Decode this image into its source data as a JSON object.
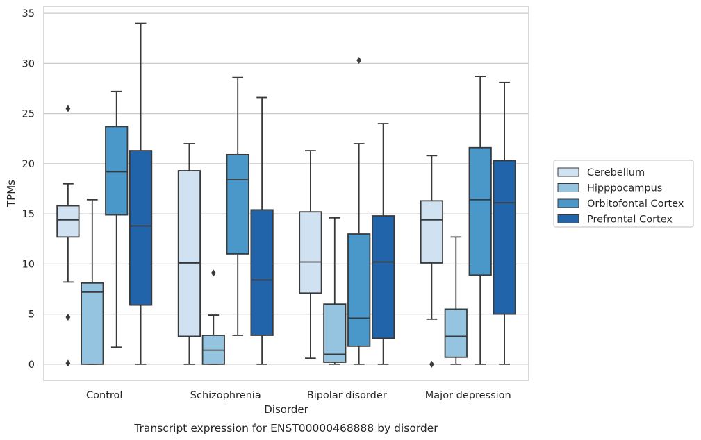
{
  "chart_data": {
    "type": "box",
    "caption": "Transcript expression for ENST00000468888 by disorder",
    "xlabel": "Disorder",
    "ylabel": "TPMs",
    "ylim": [
      -1.6,
      35.7
    ],
    "yticks": [
      0,
      5,
      10,
      15,
      20,
      25,
      30,
      35
    ],
    "grid": true,
    "legend_position": "right",
    "categories": [
      "Control",
      "Schizophrenia",
      "Bipolar disorder",
      "Major depression"
    ],
    "colors": [
      "#d0e1f2",
      "#94c4df",
      "#4a98c9",
      "#2264aa"
    ],
    "series": [
      {
        "name": "Cerebellum",
        "boxes": [
          {
            "whisker_low": 8.2,
            "q1": 12.7,
            "median": 14.4,
            "q3": 15.8,
            "whisker_high": 18.0,
            "outliers": [
              25.5,
              4.7,
              0.1
            ]
          },
          {
            "whisker_low": 0.0,
            "q1": 2.8,
            "median": 10.1,
            "q3": 19.3,
            "whisker_high": 22.0,
            "outliers": []
          },
          {
            "whisker_low": 0.6,
            "q1": 7.1,
            "median": 10.2,
            "q3": 15.2,
            "whisker_high": 21.3,
            "outliers": []
          },
          {
            "whisker_low": 4.5,
            "q1": 10.1,
            "median": 14.4,
            "q3": 16.3,
            "whisker_high": 20.8,
            "outliers": [
              0.0
            ]
          }
        ]
      },
      {
        "name": "Hipppocampus",
        "boxes": [
          {
            "whisker_low": 0.0,
            "q1": 0.0,
            "median": 7.2,
            "q3": 8.1,
            "whisker_high": 16.4,
            "outliers": []
          },
          {
            "whisker_low": 0.0,
            "q1": 0.0,
            "median": 1.4,
            "q3": 2.9,
            "whisker_high": 4.9,
            "outliers": [
              9.1
            ]
          },
          {
            "whisker_low": 0.0,
            "q1": 0.2,
            "median": 1.0,
            "q3": 6.0,
            "whisker_high": 14.6,
            "outliers": []
          },
          {
            "whisker_low": 0.0,
            "q1": 0.7,
            "median": 2.8,
            "q3": 5.5,
            "whisker_high": 12.7,
            "outliers": []
          }
        ]
      },
      {
        "name": "Orbitofontal Cortex",
        "boxes": [
          {
            "whisker_low": 1.7,
            "q1": 14.9,
            "median": 19.2,
            "q3": 23.7,
            "whisker_high": 27.2,
            "outliers": []
          },
          {
            "whisker_low": 2.9,
            "q1": 11.0,
            "median": 18.4,
            "q3": 20.9,
            "whisker_high": 28.6,
            "outliers": []
          },
          {
            "whisker_low": 0.0,
            "q1": 1.8,
            "median": 4.6,
            "q3": 13.0,
            "whisker_high": 22.0,
            "outliers": [
              30.3
            ]
          },
          {
            "whisker_low": 0.0,
            "q1": 8.9,
            "median": 16.4,
            "q3": 21.6,
            "whisker_high": 28.7,
            "outliers": []
          }
        ]
      },
      {
        "name": "Prefrontal Cortex",
        "boxes": [
          {
            "whisker_low": 0.0,
            "q1": 5.9,
            "median": 13.8,
            "q3": 21.3,
            "whisker_high": 34.0,
            "outliers": []
          },
          {
            "whisker_low": 0.0,
            "q1": 2.9,
            "median": 8.4,
            "q3": 15.4,
            "whisker_high": 26.6,
            "outliers": []
          },
          {
            "whisker_low": 0.0,
            "q1": 2.6,
            "median": 10.2,
            "q3": 14.8,
            "whisker_high": 24.0,
            "outliers": []
          },
          {
            "whisker_low": 0.0,
            "q1": 5.0,
            "median": 16.1,
            "q3": 20.3,
            "whisker_high": 28.1,
            "outliers": []
          }
        ]
      }
    ]
  }
}
